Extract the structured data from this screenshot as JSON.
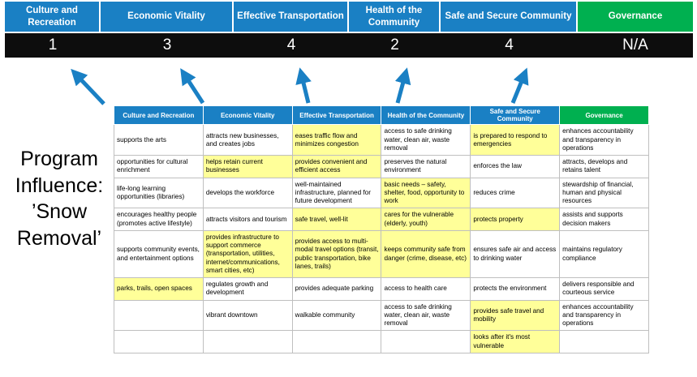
{
  "title": "Program Influence: ’Snow Removal’",
  "summary": {
    "columns": [
      {
        "label": "Culture and Recreation",
        "score": "1",
        "theme": "blue"
      },
      {
        "label": "Economic Vitality",
        "score": "3",
        "theme": "blue"
      },
      {
        "label": "Effective Transportation",
        "score": "4",
        "theme": "blue"
      },
      {
        "label": "Health of the Community",
        "score": "2",
        "theme": "blue"
      },
      {
        "label": "Safe and Secure Community",
        "score": "4",
        "theme": "blue"
      },
      {
        "label": "Governance",
        "score": "N/A",
        "theme": "green"
      }
    ]
  },
  "table": {
    "headers": [
      {
        "label": "Culture and Recreation",
        "theme": "blue"
      },
      {
        "label": "Economic Vitality",
        "theme": "blue"
      },
      {
        "label": "Effective Transportation",
        "theme": "blue"
      },
      {
        "label": "Health of the Community",
        "theme": "blue"
      },
      {
        "label": "Safe and Secure Community",
        "theme": "blue"
      },
      {
        "label": "Governance",
        "theme": "green"
      }
    ],
    "rows": [
      [
        {
          "text": "supports the arts",
          "hl": false
        },
        {
          "text": "attracts new businesses, and creates jobs",
          "hl": false
        },
        {
          "text": "eases traffic flow and minimizes congestion",
          "hl": true
        },
        {
          "text": "access to safe drinking water, clean air, waste removal",
          "hl": false
        },
        {
          "text": "is prepared to respond to emergencies",
          "hl": true
        },
        {
          "text": "enhances accountability and transparency in operations",
          "hl": false
        }
      ],
      [
        {
          "text": "opportunities for cultural enrichment",
          "hl": false
        },
        {
          "text": "helps retain current businesses",
          "hl": true
        },
        {
          "text": "provides convenient and efficient access",
          "hl": true
        },
        {
          "text": "preserves the natural environment",
          "hl": false
        },
        {
          "text": "enforces the law",
          "hl": false
        },
        {
          "text": "attracts, develops and retains talent",
          "hl": false
        }
      ],
      [
        {
          "text": "life-long learning opportunities (libraries)",
          "hl": false
        },
        {
          "text": "develops the workforce",
          "hl": false
        },
        {
          "text": "well-maintained infrastructure, planned for future development",
          "hl": false
        },
        {
          "text": "basic needs – safety, shelter, food, opportunity to work",
          "hl": true
        },
        {
          "text": "reduces crime",
          "hl": false
        },
        {
          "text": "stewardship of financial, human and physical resources",
          "hl": false
        }
      ],
      [
        {
          "text": "encourages healthy people (promotes active lifestyle)",
          "hl": false
        },
        {
          "text": "attracts visitors and tourism",
          "hl": false
        },
        {
          "text": "safe travel, well-lit",
          "hl": true
        },
        {
          "text": "cares for the vulnerable (elderly, youth)",
          "hl": true
        },
        {
          "text": "protects property",
          "hl": true
        },
        {
          "text": "assists and supports decision makers",
          "hl": false
        }
      ],
      [
        {
          "text": "supports community events, and entertainment options",
          "hl": false
        },
        {
          "text": "provides infrastructure to support commerce (transportation, utilities, internet/communications, smart cities, etc)",
          "hl": true
        },
        {
          "text": "provides access to multi-modal travel options (transit, public transportation, bike lanes, trails)",
          "hl": true
        },
        {
          "text": "keeps community safe from danger (crime, disease, etc)",
          "hl": true
        },
        {
          "text": "ensures safe air and access to drinking water",
          "hl": false
        },
        {
          "text": "maintains regulatory compliance",
          "hl": false
        }
      ],
      [
        {
          "text": "parks, trails, open spaces",
          "hl": true
        },
        {
          "text": "regulates growth and development",
          "hl": false
        },
        {
          "text": "provides adequate parking",
          "hl": false
        },
        {
          "text": "access to health care",
          "hl": false
        },
        {
          "text": "protects the environment",
          "hl": false
        },
        {
          "text": "delivers responsible and courteous service",
          "hl": false
        }
      ],
      [
        {
          "text": "",
          "hl": false
        },
        {
          "text": "vibrant downtown",
          "hl": false
        },
        {
          "text": "walkable community",
          "hl": false
        },
        {
          "text": "access to safe drinking water, clean air, waste removal",
          "hl": false
        },
        {
          "text": "provides safe travel and mobility",
          "hl": true
        },
        {
          "text": "enhances accountability and transparency in operations",
          "hl": false
        }
      ],
      [
        {
          "text": "",
          "hl": false
        },
        {
          "text": "",
          "hl": false
        },
        {
          "text": "",
          "hl": false
        },
        {
          "text": "",
          "hl": false
        },
        {
          "text": "looks after it's most vulnerable",
          "hl": true
        },
        {
          "text": "",
          "hl": false
        }
      ]
    ]
  },
  "colors": {
    "header_blue": "#1a80c4",
    "header_green": "#00b050",
    "score_bg": "#0d0d0d",
    "highlight_yellow": "#ffff99",
    "grid_border": "#bfbfbf",
    "arrow_blue": "#1a80c4"
  }
}
